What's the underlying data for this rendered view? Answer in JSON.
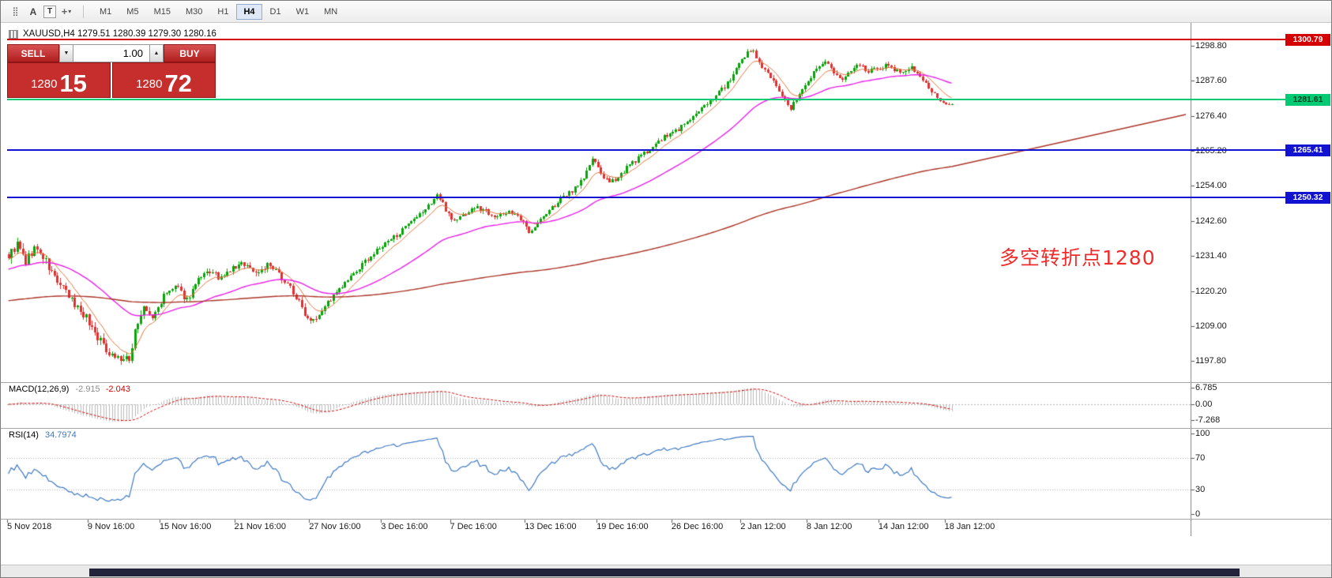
{
  "toolbar": {
    "icons": [
      {
        "name": "chart-shift-icon",
        "glyph": "⣿"
      },
      {
        "name": "arrow-tool-icon",
        "glyph": "A"
      },
      {
        "name": "text-tool-icon",
        "glyph": "T"
      },
      {
        "name": "crosshair-tool-icon",
        "glyph": "+"
      },
      {
        "name": "chevron-down-icon",
        "glyph": "▾"
      }
    ],
    "timeframes": [
      {
        "label": "M1",
        "active": false
      },
      {
        "label": "M5",
        "active": false
      },
      {
        "label": "M15",
        "active": false
      },
      {
        "label": "M30",
        "active": false
      },
      {
        "label": "H1",
        "active": false
      },
      {
        "label": "H4",
        "active": true
      },
      {
        "label": "D1",
        "active": false
      },
      {
        "label": "W1",
        "active": false
      },
      {
        "label": "MN",
        "active": false
      }
    ]
  },
  "trade_panel": {
    "sell_label": "SELL",
    "buy_label": "BUY",
    "volume": "1.00",
    "bid_main": "1280",
    "bid_pips": "15",
    "ask_main": "1280",
    "ask_pips": "72"
  },
  "chart": {
    "title": "XAUUSD,H4  1279.51 1280.39 1279.30 1280.16",
    "annotation": {
      "text": "多空转折点1280"
    },
    "price_ticks": [
      "1298.80",
      "1287.60",
      "1276.40",
      "1265.20",
      "1254.00",
      "1242.60",
      "1231.40",
      "1220.20",
      "1209.00",
      "1197.80"
    ],
    "hlines": [
      {
        "label": "1300.79",
        "price": 1300.79,
        "color": "#d40000",
        "text_color": "#ffffff"
      },
      {
        "label": "1281.61",
        "price": 1281.61,
        "color": "#00ca74",
        "text_color": "#063c22"
      },
      {
        "label": "1265.41",
        "price": 1265.41,
        "color": "#1113d0",
        "text_color": "#ffffff"
      },
      {
        "label": "1250.32",
        "price": 1250.32,
        "color": "#1113d0",
        "text_color": "#ffffff"
      }
    ],
    "time_labels": [
      {
        "text": "5 Nov 2018",
        "i": 0
      },
      {
        "text": "9 Nov 16:00",
        "i": 28
      },
      {
        "text": "15 Nov 16:00",
        "i": 53
      },
      {
        "text": "21 Nov 16:00",
        "i": 79
      },
      {
        "text": "27 Nov 16:00",
        "i": 105
      },
      {
        "text": "3 Dec 16:00",
        "i": 130
      },
      {
        "text": "7 Dec 16:00",
        "i": 154
      },
      {
        "text": "13 Dec 16:00",
        "i": 180
      },
      {
        "text": "19 Dec 16:00",
        "i": 205
      },
      {
        "text": "26 Dec 16:00",
        "i": 231
      },
      {
        "text": "2 Jan 12:00",
        "i": 255
      },
      {
        "text": "8 Jan 12:00",
        "i": 278
      },
      {
        "text": "14 Jan 12:00",
        "i": 303
      },
      {
        "text": "18 Jan 12:00",
        "i": 326
      }
    ]
  },
  "macd": {
    "name": "MACD(12,26,9)",
    "main_value": "-2.915",
    "signal_value": "-2.043",
    "axis": [
      "6.785",
      "0.00",
      "-7.268"
    ]
  },
  "rsi": {
    "name": "RSI(14)",
    "value": "34.7974",
    "axis": [
      "100",
      "70",
      "30",
      "0"
    ]
  },
  "chart_data": {
    "type": "candlestick",
    "symbol": "XAUUSD",
    "period": "H4",
    "bars_visible": 329,
    "last_bar": {
      "open": 1279.51,
      "high": 1280.39,
      "low": 1279.3,
      "close": 1280.16
    },
    "bid": 1280.15,
    "ask": 1280.72,
    "y_axis_range": [
      1193,
      1304
    ],
    "price_axis_ticks": [
      1298.8,
      1287.6,
      1276.4,
      1265.2,
      1254.0,
      1242.6,
      1231.4,
      1220.2,
      1209.0,
      1197.8
    ],
    "x_labels": [
      "5 Nov 2018",
      "9 Nov 16:00",
      "15 Nov 16:00",
      "21 Nov 16:00",
      "27 Nov 16:00",
      "3 Dec 16:00",
      "7 Dec 16:00",
      "13 Dec 16:00",
      "19 Dec 16:00",
      "26 Dec 16:00",
      "2 Jan 12:00",
      "8 Jan 12:00",
      "14 Jan 12:00",
      "18 Jan 12:00"
    ],
    "horizontal_lines": [
      {
        "price": 1300.79,
        "color": "#d40000",
        "role": "resistance"
      },
      {
        "price": 1281.61,
        "color": "#00ca74",
        "role": "pivot"
      },
      {
        "price": 1265.41,
        "color": "#1113d0",
        "role": "support"
      },
      {
        "price": 1250.32,
        "color": "#1113d0",
        "role": "support"
      }
    ],
    "close_waypoints": [
      [
        0,
        1231.5
      ],
      [
        3,
        1235
      ],
      [
        6,
        1229.5
      ],
      [
        9,
        1234
      ],
      [
        12,
        1231
      ],
      [
        15,
        1226
      ],
      [
        18,
        1222
      ],
      [
        22,
        1217
      ],
      [
        26,
        1213
      ],
      [
        30,
        1207
      ],
      [
        34,
        1201.5
      ],
      [
        38,
        1198.8
      ],
      [
        42,
        1197.6
      ],
      [
        44,
        1208
      ],
      [
        47,
        1214.5
      ],
      [
        50,
        1211.5
      ],
      [
        54,
        1218.5
      ],
      [
        58,
        1221.5
      ],
      [
        62,
        1217.5
      ],
      [
        66,
        1223.5
      ],
      [
        70,
        1226.5
      ],
      [
        74,
        1224
      ],
      [
        78,
        1227.5
      ],
      [
        82,
        1229
      ],
      [
        86,
        1226
      ],
      [
        90,
        1228.5
      ],
      [
        94,
        1225.5
      ],
      [
        98,
        1221.5
      ],
      [
        101,
        1216.5
      ],
      [
        104,
        1211.5
      ],
      [
        107,
        1212
      ],
      [
        110,
        1215.5
      ],
      [
        114,
        1219.5
      ],
      [
        118,
        1223.5
      ],
      [
        122,
        1227.5
      ],
      [
        126,
        1231.5
      ],
      [
        130,
        1234.5
      ],
      [
        134,
        1237.5
      ],
      [
        138,
        1240.5
      ],
      [
        142,
        1243.5
      ],
      [
        146,
        1247.5
      ],
      [
        149,
        1251
      ],
      [
        152,
        1246.5
      ],
      [
        155,
        1242.5
      ],
      [
        158,
        1244.5
      ],
      [
        162,
        1247
      ],
      [
        166,
        1246
      ],
      [
        170,
        1244
      ],
      [
        174,
        1246
      ],
      [
        178,
        1243
      ],
      [
        181,
        1239.5
      ],
      [
        184,
        1242
      ],
      [
        188,
        1246
      ],
      [
        192,
        1249.5
      ],
      [
        196,
        1252.5
      ],
      [
        200,
        1256.5
      ],
      [
        203,
        1262.5
      ],
      [
        206,
        1258
      ],
      [
        209,
        1254.5
      ],
      [
        212,
        1257
      ],
      [
        216,
        1260.5
      ],
      [
        220,
        1263.5
      ],
      [
        224,
        1266.5
      ],
      [
        228,
        1269.5
      ],
      [
        232,
        1271.5
      ],
      [
        236,
        1274.5
      ],
      [
        240,
        1277.5
      ],
      [
        244,
        1281.5
      ],
      [
        248,
        1285
      ],
      [
        251,
        1288
      ],
      [
        254,
        1292.5
      ],
      [
        257,
        1296.5
      ],
      [
        259,
        1297.5
      ],
      [
        261,
        1293.5
      ],
      [
        264,
        1289.5
      ],
      [
        267,
        1286
      ],
      [
        270,
        1281.5
      ],
      [
        272,
        1278.5
      ],
      [
        275,
        1283.5
      ],
      [
        278,
        1288
      ],
      [
        281,
        1291.5
      ],
      [
        284,
        1293.5
      ],
      [
        287,
        1290.5
      ],
      [
        290,
        1288
      ],
      [
        293,
        1290.5
      ],
      [
        296,
        1292.5
      ],
      [
        299,
        1290.5
      ],
      [
        302,
        1291.5
      ],
      [
        305,
        1292.5
      ],
      [
        308,
        1291.5
      ],
      [
        311,
        1290.5
      ],
      [
        314,
        1291.5
      ],
      [
        317,
        1289.5
      ],
      [
        320,
        1285.5
      ],
      [
        322,
        1283
      ],
      [
        324,
        1281
      ],
      [
        326,
        1280
      ],
      [
        328,
        1280.16
      ]
    ],
    "moving_averages": [
      {
        "name": "fast",
        "period": 9,
        "color": "#e0743e"
      },
      {
        "name": "medium",
        "period": 45,
        "color": "#e820e8"
      },
      {
        "name": "slow",
        "period": 300,
        "color": "#aa3528"
      }
    ],
    "indicators": {
      "macd": {
        "params": [
          12,
          26,
          9
        ],
        "last_main": -2.915,
        "last_signal": -2.043,
        "axis_max": 6.785,
        "axis_min": -7.268
      },
      "rsi": {
        "period": 14,
        "last": 34.7974,
        "levels": [
          70,
          30
        ]
      }
    },
    "colors": {
      "bull": "#0ba30b",
      "bear": "#e03030",
      "histogram": "#b8b8b8",
      "signal": "#d40000",
      "rsi_line": "#3d78c2"
    }
  }
}
